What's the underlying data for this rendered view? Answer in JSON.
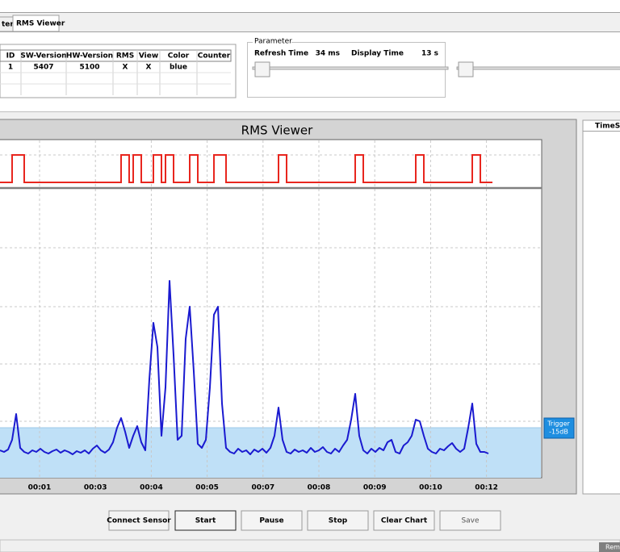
{
  "window": {
    "tabs": [
      "ter",
      "RMS Viewer"
    ]
  },
  "sensor_table": {
    "headers": [
      "ID",
      "SW-Version",
      "HW-Version",
      "RMS",
      "View",
      "Color",
      "Counter"
    ],
    "rows": [
      [
        "1",
        "5407",
        "5100",
        "X",
        "X",
        "blue"
      ]
    ]
  },
  "parameter": {
    "title": "Parameter",
    "refresh_label": "Refresh Time",
    "refresh_value": "34 ms",
    "display_label": "Display Time",
    "display_value": "13 s"
  },
  "chart_data": {
    "type": "line",
    "title": "RMS Viewer",
    "categories": [
      "00:01",
      "00:03",
      "00:04",
      "00:05",
      "00:07",
      "00:08",
      "00:09",
      "00:10",
      "00:12"
    ],
    "ylim": [
      0,
      356
    ],
    "rms": {
      "color": "#1a1ad0",
      "values": [
        34,
        32,
        35,
        47,
        79,
        37,
        32,
        30,
        34,
        32,
        36,
        32,
        30,
        33,
        35,
        31,
        34,
        32,
        29,
        33,
        31,
        34,
        30,
        36,
        40,
        34,
        31,
        35,
        44,
        62,
        74,
        57,
        37,
        52,
        64,
        44,
        34,
        122,
        192,
        162,
        52,
        112,
        244,
        152,
        47,
        52,
        172,
        212,
        132,
        42,
        37,
        47,
        112,
        202,
        212,
        92,
        37,
        32,
        30,
        36,
        32,
        34,
        29,
        35,
        32,
        36,
        31,
        37,
        52,
        87,
        47,
        32,
        30,
        35,
        32,
        34,
        31,
        37,
        32,
        34,
        38,
        32,
        30,
        36,
        32,
        40,
        47,
        72,
        104,
        52,
        34,
        30,
        36,
        32,
        37,
        34,
        44,
        47,
        32,
        30,
        40,
        44,
        52,
        72,
        70,
        52,
        36,
        32,
        30,
        36,
        34,
        39,
        43,
        36,
        32,
        36,
        62,
        92,
        42,
        32,
        32,
        30
      ]
    },
    "trigger": {
      "color": "#e8261e",
      "values": [
        0,
        0,
        0,
        1,
        1,
        1,
        0,
        0,
        0,
        0,
        0,
        0,
        0,
        0,
        0,
        0,
        0,
        0,
        0,
        0,
        0,
        0,
        0,
        0,
        0,
        0,
        0,
        0,
        0,
        0,
        1,
        1,
        0,
        1,
        1,
        0,
        0,
        0,
        1,
        1,
        0,
        1,
        1,
        0,
        0,
        0,
        0,
        1,
        1,
        0,
        0,
        0,
        0,
        1,
        1,
        1,
        0,
        0,
        0,
        0,
        0,
        0,
        0,
        0,
        0,
        0,
        0,
        0,
        0,
        1,
        1,
        0,
        0,
        0,
        0,
        0,
        0,
        0,
        0,
        0,
        0,
        0,
        0,
        0,
        0,
        0,
        0,
        0,
        1,
        1,
        0,
        0,
        0,
        0,
        0,
        0,
        0,
        0,
        0,
        0,
        0,
        0,
        0,
        1,
        1,
        0,
        0,
        0,
        0,
        0,
        0,
        0,
        0,
        0,
        0,
        0,
        0,
        1,
        1,
        0,
        0,
        0
      ]
    },
    "trigger_level": 62,
    "trigger_label": [
      "Trigger",
      "-15dB"
    ],
    "fill_color": "#bfe0f7",
    "grid": true
  },
  "side_panel": {
    "header": "TimeSta"
  },
  "buttons": [
    "Connect Sensor",
    "Start",
    "Pause",
    "Stop",
    "Clear Chart",
    "Save"
  ],
  "status": "Rem"
}
